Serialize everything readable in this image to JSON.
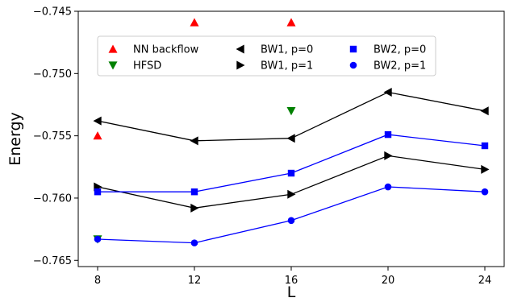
{
  "chart_data": {
    "type": "scatter",
    "xlabel": "L",
    "ylabel": "Energy",
    "xlim": [
      7.2,
      24.8
    ],
    "ylim": [
      -0.7655,
      -0.745
    ],
    "xticks": [
      "8",
      "12",
      "16",
      "20",
      "24"
    ],
    "xtick_values": [
      8,
      12,
      16,
      20,
      24
    ],
    "yticks": [
      "−0.765",
      "−0.760",
      "−0.755",
      "−0.750",
      "−0.745"
    ],
    "ytick_values": [
      -0.765,
      -0.76,
      -0.755,
      -0.75,
      -0.745
    ],
    "grid": false,
    "legend_position": "top-center",
    "series": [
      {
        "name": "NN backflow",
        "marker": "triangle-up",
        "color": "#ff0000",
        "line": false,
        "x": [
          8,
          12,
          16
        ],
        "y": [
          -0.755,
          -0.7459,
          -0.7459
        ]
      },
      {
        "name": "HFSD",
        "marker": "triangle-down",
        "color": "#008000",
        "line": false,
        "x": [
          8,
          16
        ],
        "y": [
          -0.7633,
          -0.753
        ]
      },
      {
        "name": "BW1, p=0",
        "marker": "triangle-left",
        "color": "#000000",
        "line": true,
        "x": [
          8,
          12,
          16,
          20,
          24
        ],
        "y": [
          -0.7538,
          -0.7554,
          -0.7552,
          -0.7515,
          -0.753
        ]
      },
      {
        "name": "BW1, p=1",
        "marker": "triangle-right",
        "color": "#000000",
        "line": true,
        "x": [
          8,
          12,
          16,
          20,
          24
        ],
        "y": [
          -0.7591,
          -0.7608,
          -0.7597,
          -0.7566,
          -0.7577
        ]
      },
      {
        "name": "BW2, p=0",
        "marker": "square",
        "color": "#0000ff",
        "line": true,
        "x": [
          8,
          12,
          16,
          20,
          24
        ],
        "y": [
          -0.7595,
          -0.7595,
          -0.758,
          -0.7549,
          -0.7558
        ]
      },
      {
        "name": "BW2, p=1",
        "marker": "circle",
        "color": "#0000ff",
        "line": true,
        "x": [
          8,
          12,
          16,
          20,
          24
        ],
        "y": [
          -0.7633,
          -0.7636,
          -0.7618,
          -0.7591,
          -0.7595
        ]
      }
    ]
  }
}
